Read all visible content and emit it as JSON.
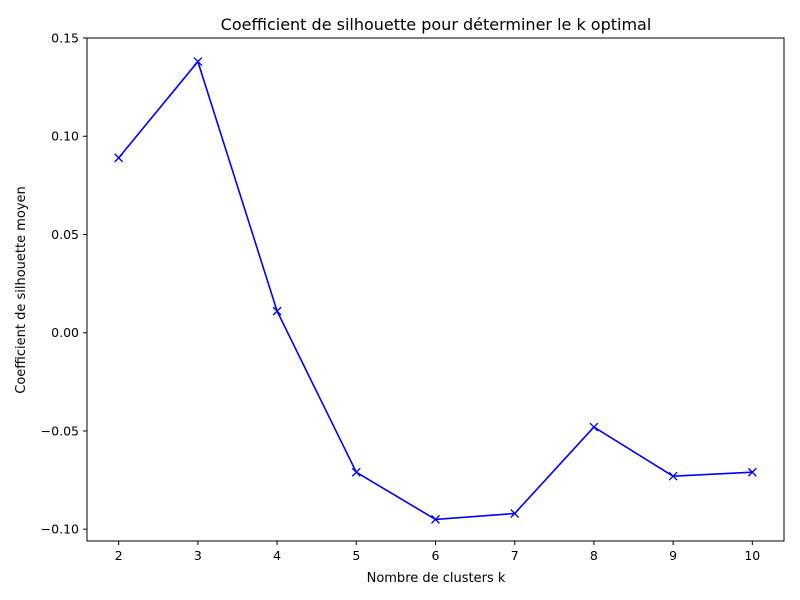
{
  "chart_data": {
    "type": "line",
    "title": "Coefficient de silhouette pour déterminer le k optimal",
    "xlabel": "Nombre de clusters k",
    "ylabel": "Coefficient de silhouette moyen",
    "x": [
      2,
      3,
      4,
      5,
      6,
      7,
      8,
      9,
      10
    ],
    "series": [
      {
        "values": [
          0.089,
          0.138,
          0.011,
          -0.071,
          -0.095,
          -0.092,
          -0.048,
          -0.073,
          -0.071
        ],
        "color": "#0000ff",
        "marker": "x"
      }
    ],
    "xlim": [
      1.6,
      10.4
    ],
    "ylim": [
      -0.106,
      0.15
    ],
    "xticks": [
      2,
      3,
      4,
      5,
      6,
      7,
      8,
      9,
      10
    ],
    "xtick_labels": [
      "2",
      "3",
      "4",
      "5",
      "6",
      "7",
      "8",
      "9",
      "10"
    ],
    "yticks": [
      0.15,
      0.1,
      0.05,
      0.0,
      -0.05,
      -0.1
    ],
    "ytick_labels": [
      "0.15",
      "0.10",
      "0.05",
      "0.00",
      "−0.05",
      "−0.10"
    ],
    "grid": false
  }
}
